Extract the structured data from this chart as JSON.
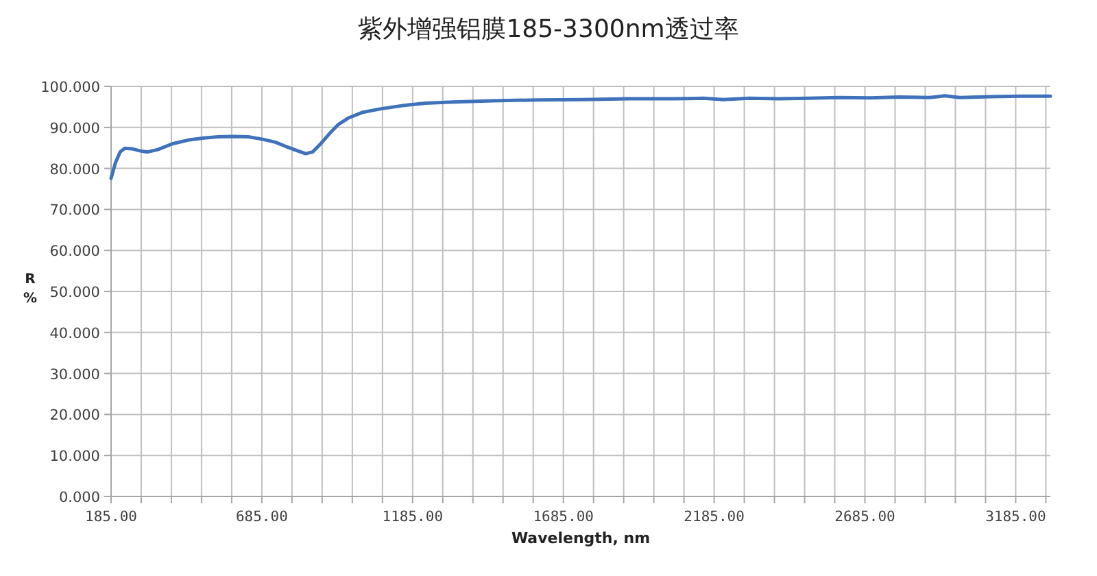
{
  "chart_data": {
    "type": "line",
    "title": "紫外增强铝膜185-3300nm透过率",
    "xlabel": "Wavelength, nm",
    "ylabel": "R %",
    "x": [
      185,
      200,
      215,
      230,
      254,
      280,
      306,
      340,
      388,
      440,
      493,
      540,
      590,
      640,
      688,
      730,
      763,
      800,
      830,
      853,
      880,
      912,
      940,
      972,
      1020,
      1077,
      1150,
      1227,
      1320,
      1451,
      1600,
      1750,
      1900,
      2050,
      2150,
      2215,
      2300,
      2400,
      2500,
      2600,
      2700,
      2800,
      2900,
      2950,
      3000,
      3100,
      3200,
      3300
    ],
    "series": [
      {
        "color": "#3f72bb",
        "values": [
          77.6,
          81.5,
          84.0,
          84.9,
          84.8,
          84.3,
          84.0,
          84.6,
          86.0,
          86.9,
          87.4,
          87.7,
          87.8,
          87.7,
          87.1,
          86.4,
          85.4,
          84.4,
          83.6,
          84.0,
          86.0,
          88.7,
          90.8,
          92.3,
          93.7,
          94.5,
          95.3,
          95.9,
          96.2,
          96.5,
          96.7,
          96.8,
          97.0,
          97.0,
          97.1,
          96.8,
          97.1,
          97.0,
          97.1,
          97.3,
          97.2,
          97.4,
          97.3,
          97.7,
          97.3,
          97.5,
          97.6,
          97.6
        ]
      }
    ],
    "xlim": [
      185,
      3300
    ],
    "ylim": [
      0,
      100
    ],
    "xticks": [
      {
        "value": 185,
        "label": "185.00"
      },
      {
        "value": 285,
        "label": null
      },
      {
        "value": 385,
        "label": null
      },
      {
        "value": 485,
        "label": null
      },
      {
        "value": 585,
        "label": null
      },
      {
        "value": 685,
        "label": "685.00"
      },
      {
        "value": 785,
        "label": null
      },
      {
        "value": 885,
        "label": null
      },
      {
        "value": 985,
        "label": null
      },
      {
        "value": 1085,
        "label": null
      },
      {
        "value": 1185,
        "label": "1185.00"
      },
      {
        "value": 1285,
        "label": null
      },
      {
        "value": 1385,
        "label": null
      },
      {
        "value": 1485,
        "label": null
      },
      {
        "value": 1585,
        "label": null
      },
      {
        "value": 1685,
        "label": "1685.00"
      },
      {
        "value": 1785,
        "label": null
      },
      {
        "value": 1885,
        "label": null
      },
      {
        "value": 1985,
        "label": null
      },
      {
        "value": 2085,
        "label": null
      },
      {
        "value": 2185,
        "label": "2185.00"
      },
      {
        "value": 2285,
        "label": null
      },
      {
        "value": 2385,
        "label": null
      },
      {
        "value": 2485,
        "label": null
      },
      {
        "value": 2585,
        "label": null
      },
      {
        "value": 2685,
        "label": "2685.00"
      },
      {
        "value": 2785,
        "label": null
      },
      {
        "value": 2885,
        "label": null
      },
      {
        "value": 2985,
        "label": null
      },
      {
        "value": 3085,
        "label": null
      },
      {
        "value": 3185,
        "label": "3185.00"
      },
      {
        "value": 3285,
        "label": null
      }
    ],
    "yticks": [
      {
        "value": 0,
        "label": "0.000"
      },
      {
        "value": 10,
        "label": "10.000"
      },
      {
        "value": 20,
        "label": "20.000"
      },
      {
        "value": 30,
        "label": "30.000"
      },
      {
        "value": 40,
        "label": "40.000"
      },
      {
        "value": 50,
        "label": "50.000"
      },
      {
        "value": 60,
        "label": "60.000"
      },
      {
        "value": 70,
        "label": "70.000"
      },
      {
        "value": 80,
        "label": "80.000"
      },
      {
        "value": 90,
        "label": "90.000"
      },
      {
        "value": 100,
        "label": "100.000"
      }
    ],
    "grid": true,
    "marker": "none",
    "line_style": "solid"
  }
}
